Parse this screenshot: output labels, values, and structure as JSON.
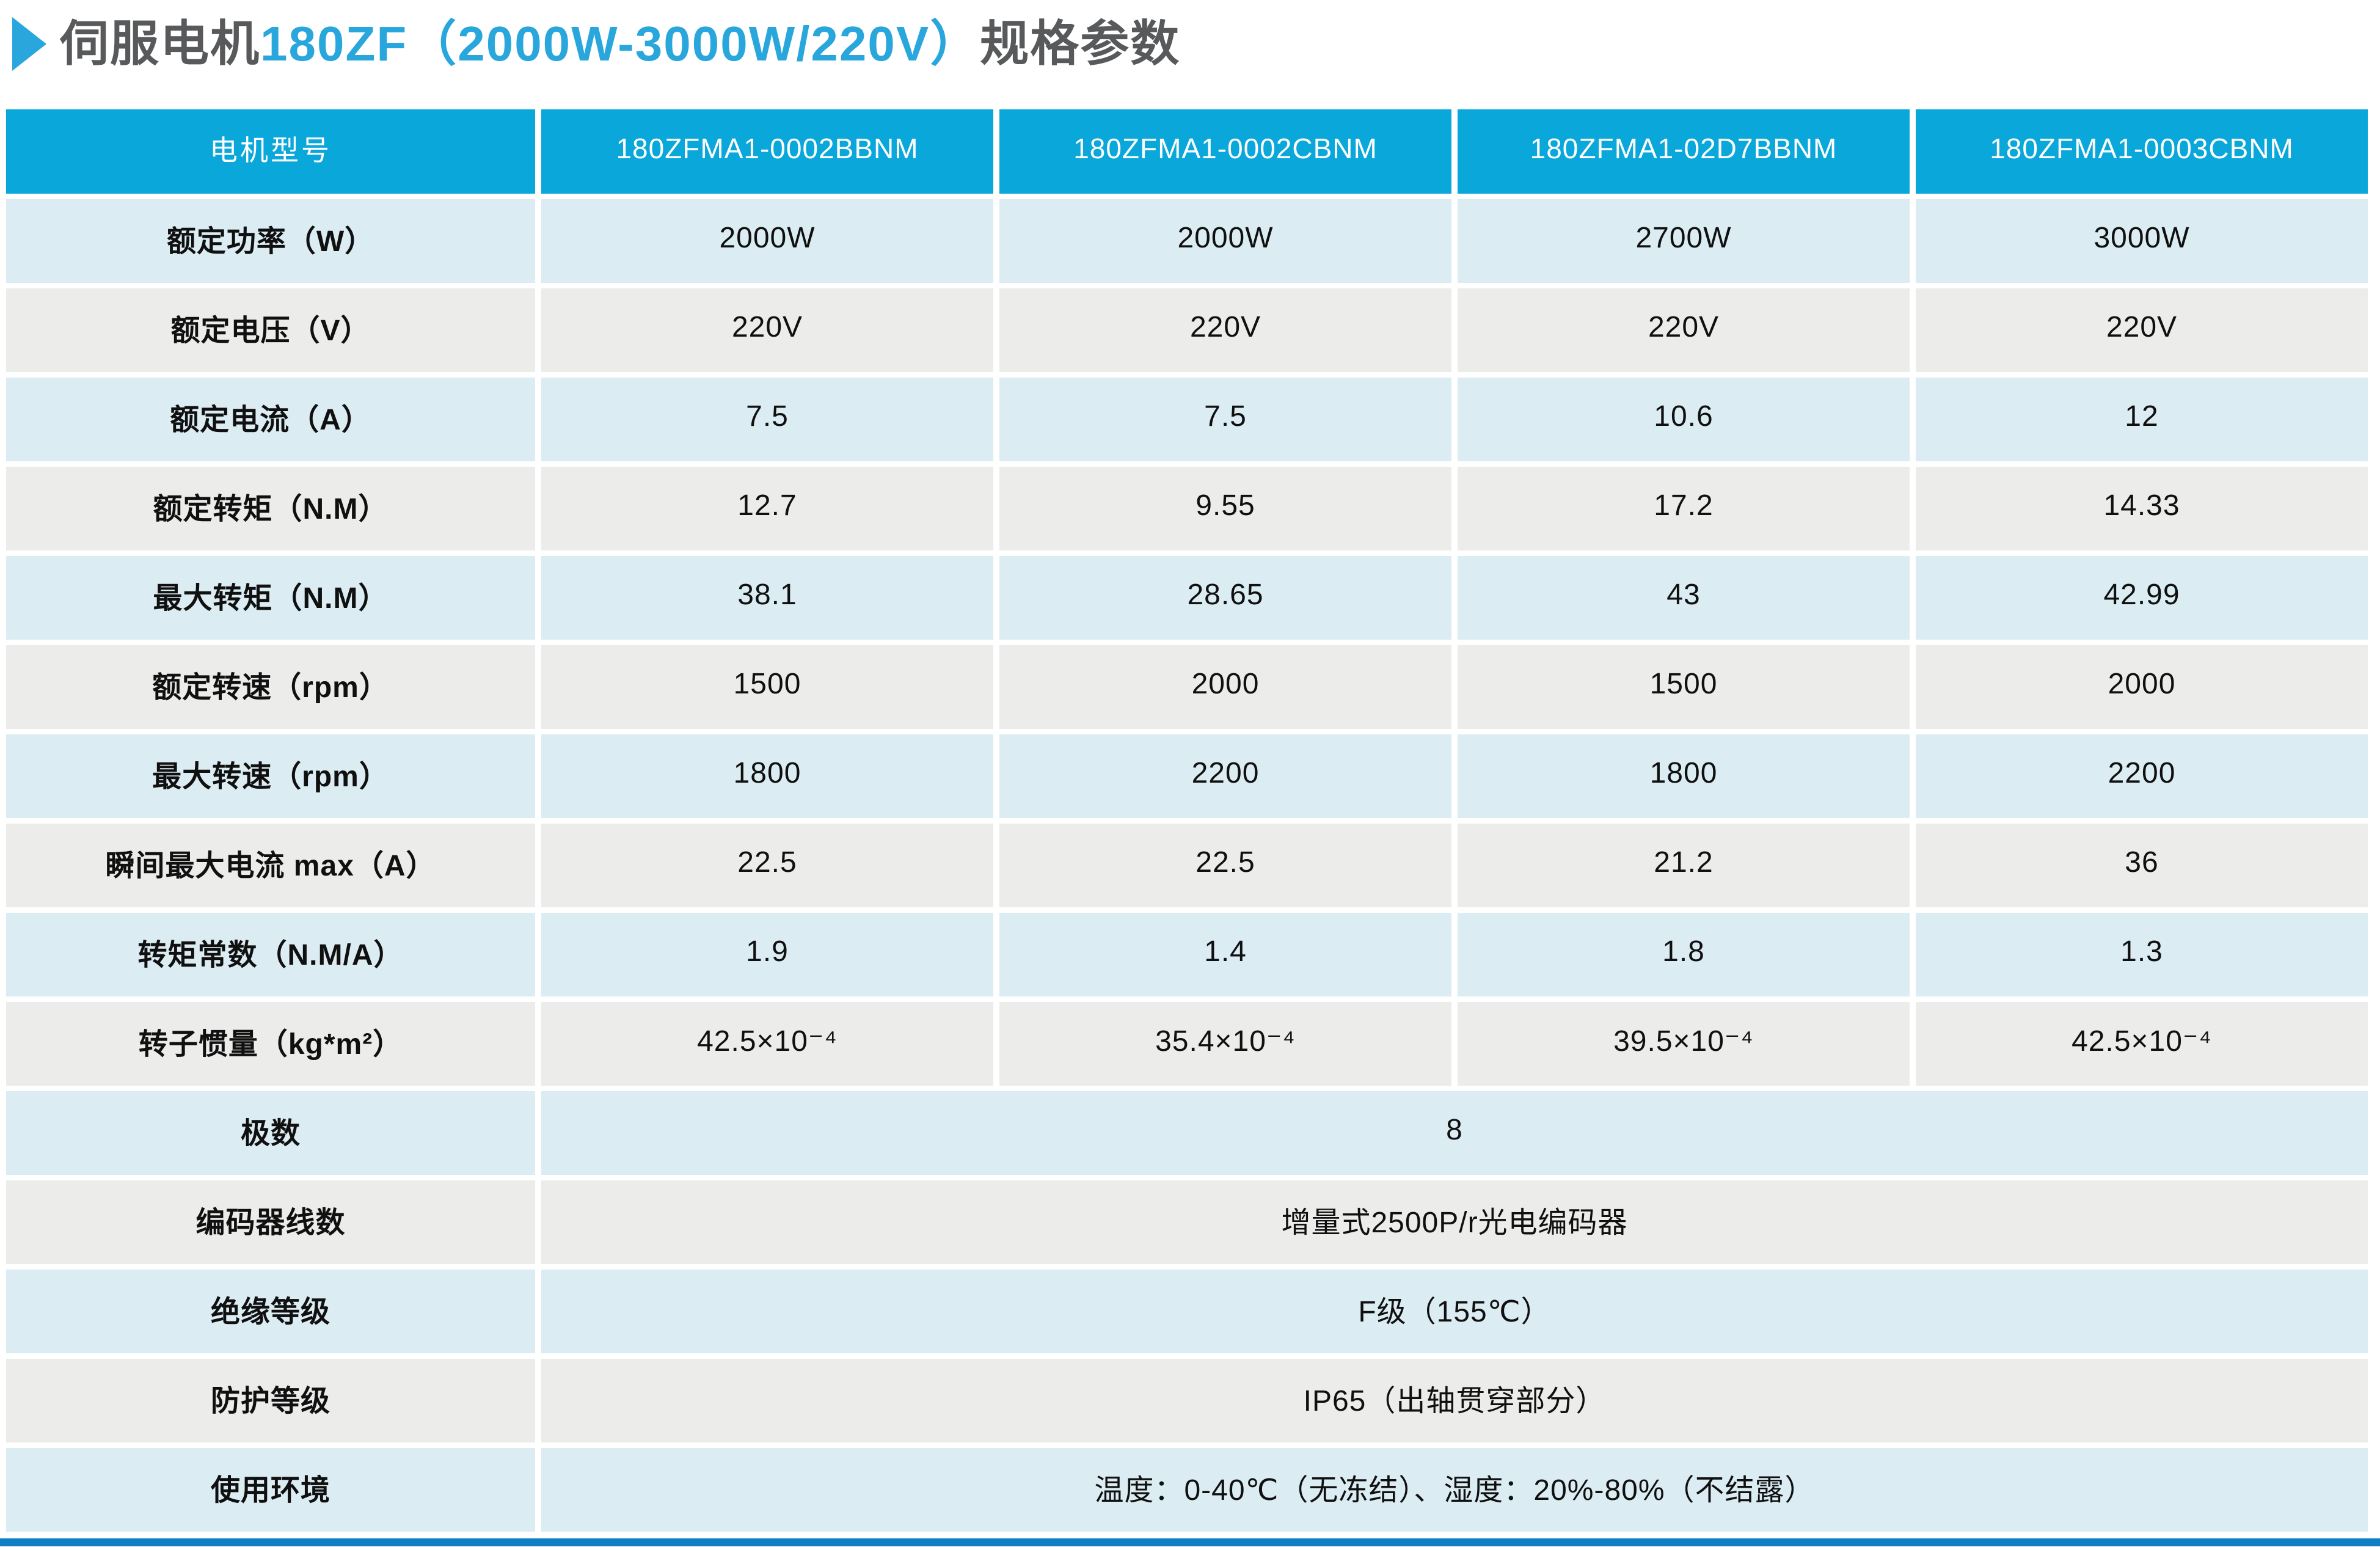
{
  "title": {
    "prefix": "伺服电机",
    "highlight": "180ZF（2000W-3000W/220V）",
    "suffix": "规格参数"
  },
  "colors": {
    "accent_blue": "#29a7dc",
    "title_gray": "#58595b",
    "header_bg": "#09a7da",
    "row_blue": "#dbecf3",
    "row_gray": "#ececeb",
    "bottom_bar": "#0c7fc4"
  },
  "table": {
    "columns": [
      "电机型号",
      "180ZFMA1-0002BBNM",
      "180ZFMA1-0002CBNM",
      "180ZFMA1-02D7BBNM",
      "180ZFMA1-0003CBNM"
    ],
    "rows": [
      {
        "label": "额定功率（W）",
        "values": [
          "2000W",
          "2000W",
          "2700W",
          "3000W"
        ]
      },
      {
        "label": "额定电压（V）",
        "values": [
          "220V",
          "220V",
          "220V",
          "220V"
        ]
      },
      {
        "label": "额定电流（A）",
        "values": [
          "7.5",
          "7.5",
          "10.6",
          "12"
        ]
      },
      {
        "label": "额定转矩（N.M）",
        "values": [
          "12.7",
          "9.55",
          "17.2",
          "14.33"
        ]
      },
      {
        "label": "最大转矩（N.M）",
        "values": [
          "38.1",
          "28.65",
          "43",
          "42.99"
        ]
      },
      {
        "label": "额定转速（rpm）",
        "values": [
          "1500",
          "2000",
          "1500",
          "2000"
        ]
      },
      {
        "label": "最大转速（rpm）",
        "values": [
          "1800",
          "2200",
          "1800",
          "2200"
        ]
      },
      {
        "label": "瞬间最大电流 max（A）",
        "values": [
          "22.5",
          "22.5",
          "21.2",
          "36"
        ]
      },
      {
        "label": "转矩常数（N.M/A）",
        "values": [
          "1.9",
          "1.4",
          "1.8",
          "1.3"
        ]
      },
      {
        "label": "转子惯量（kg*m²）",
        "values": [
          "42.5×10⁻⁴",
          "35.4×10⁻⁴",
          "39.5×10⁻⁴",
          "42.5×10⁻⁴"
        ]
      },
      {
        "label": "极数",
        "span": "8"
      },
      {
        "label": "编码器线数",
        "span": "增量式2500P/r光电编码器"
      },
      {
        "label": "绝缘等级",
        "span": "F级（155℃）"
      },
      {
        "label": "防护等级",
        "span": "IP65（出轴贯穿部分）"
      },
      {
        "label": "使用环境",
        "span": "温度：0-40℃（无冻结）、湿度：20%-80%（不结露）"
      }
    ]
  }
}
